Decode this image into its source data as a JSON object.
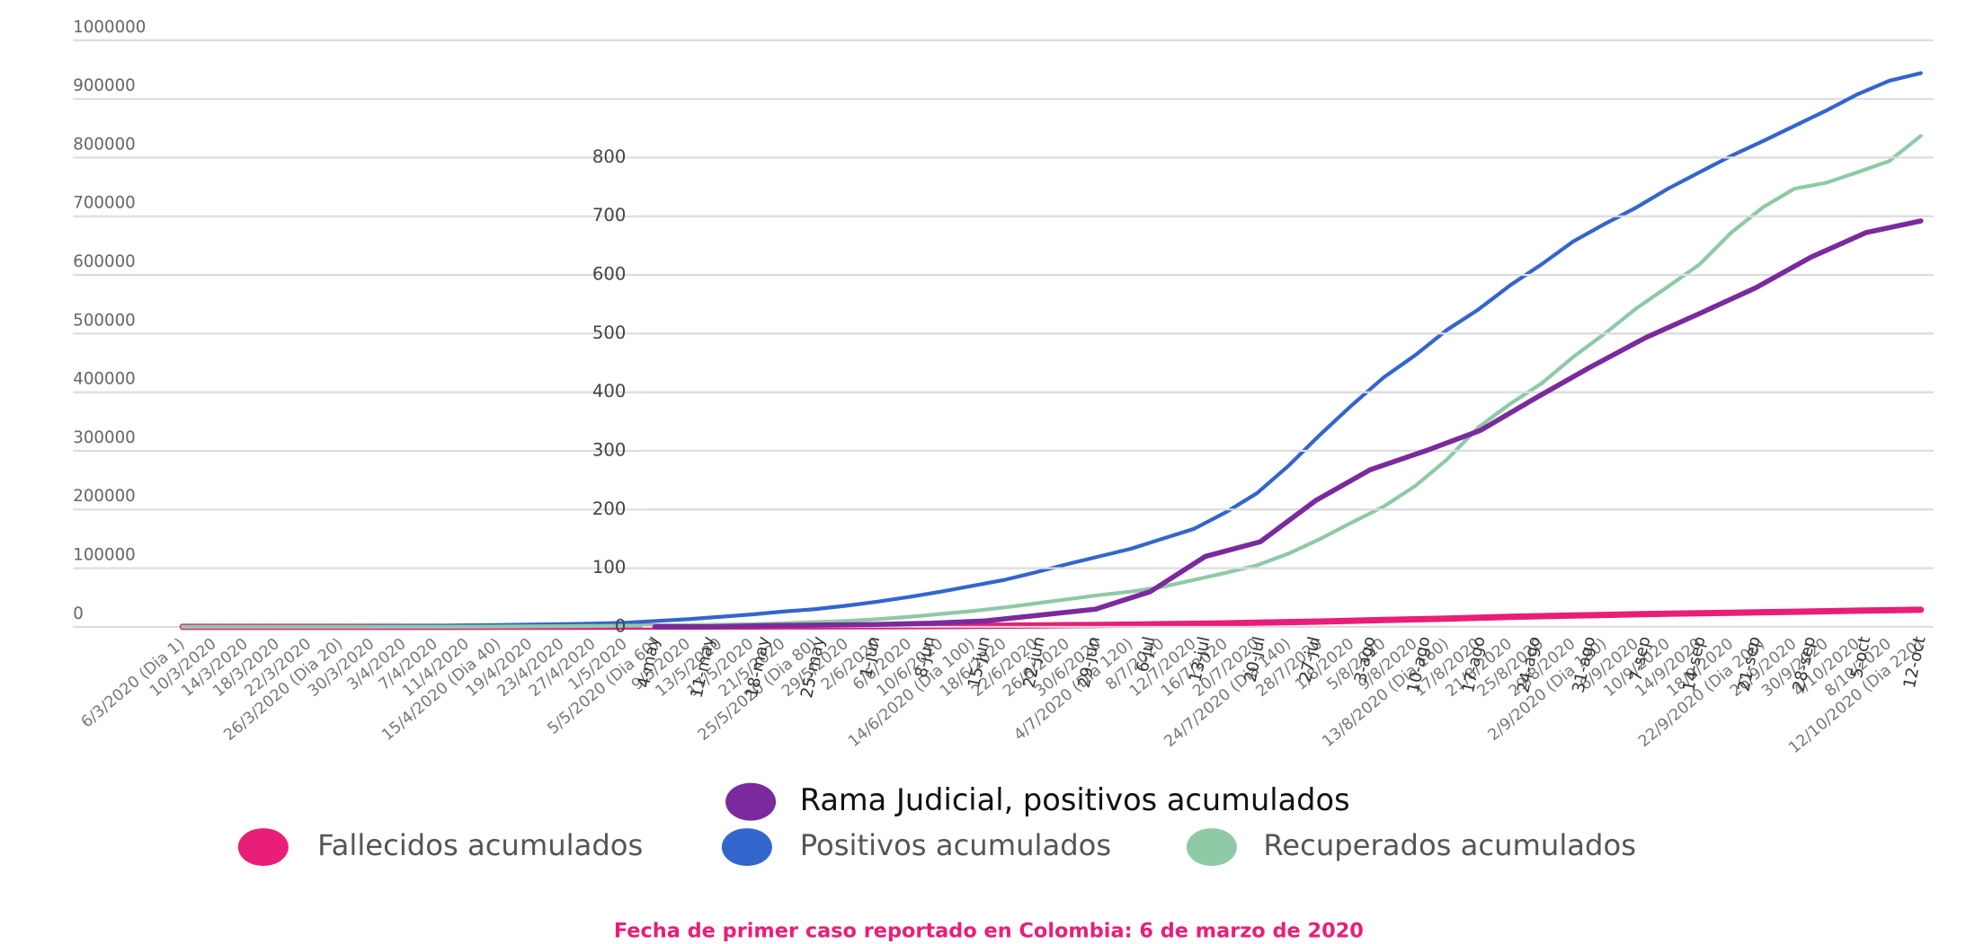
{
  "chart_data": [
    {
      "type": "line",
      "categories": [
        "6/3/2020 (Dia 1)",
        "10/3/2020",
        "14/3/2020",
        "18/3/2020",
        "22/3/2020",
        "26/3/2020 (Dia 20)",
        "30/3/2020",
        "3/4/2020",
        "7/4/2020",
        "11/4/2020",
        "15/4/2020 (Dia 40)",
        "19/4/2020",
        "23/4/2020",
        "27/4/2020",
        "1/5/2020",
        "5/5/2020 (Dia 60)",
        "9/5/2020",
        "13/5/2020",
        "17/5/2020",
        "21/5/2020",
        "25/5/2020 (Dia 80)",
        "29/5/2020",
        "2/6/2020",
        "6/6/2020",
        "10/6/2020",
        "14/6/2020 (Dia 100)",
        "18/6/2020",
        "22/6/2020",
        "26/6/2020",
        "30/6/2020",
        "4/7/2020 (Dia 120)",
        "8/7/2020",
        "12/7/2020",
        "16/7/2020",
        "20/7/2020",
        "24/7/2020 (Dia 140)",
        "28/7/2020",
        "1/8/2020",
        "5/8/2020",
        "9/8/2020",
        "13/8/2020 (Dia 160)",
        "17/8/2020",
        "21/8/2020",
        "25/8/2020",
        "29/8/2020",
        "2/9/2020 (Dia 180)",
        "6/9/2020",
        "10/9/2020",
        "14/9/2020",
        "18/9/2020",
        "22/9/2020 (Dia 200)",
        "26/9/2020",
        "30/9/2020",
        "4/10/2020",
        "8/10/2020",
        "12/10/2020 (Dia 220)"
      ],
      "series": [
        {
          "name": "Fallecidos acumulados",
          "color": "#e91e78",
          "values": [
            0,
            0,
            0,
            1,
            3,
            8,
            14,
            25,
            50,
            80,
            130,
            180,
            230,
            260,
            300,
            380,
            450,
            550,
            650,
            750,
            830,
            900,
            1000,
            1200,
            1400,
            1650,
            1950,
            2350,
            2800,
            3300,
            3800,
            4500,
            5200,
            6000,
            7000,
            8000,
            9000,
            10300,
            11600,
            12800,
            14000,
            15500,
            17000,
            18200,
            19300,
            20300,
            21400,
            22300,
            23200,
            24000,
            24800,
            25600,
            26600,
            27600,
            28300,
            29000
          ]
        },
        {
          "name": "Positivos acumulados",
          "color": "#3366cc",
          "values": [
            0,
            3,
            24,
            93,
            231,
            470,
            798,
            1267,
            1780,
            2473,
            3105,
            3792,
            4561,
            5597,
            7006,
            10000,
            13000,
            17000,
            21000,
            26000,
            30000,
            36000,
            43000,
            51000,
            60000,
            70000,
            80000,
            93000,
            107000,
            120000,
            133000,
            150000,
            167000,
            195000,
            228000,
            275000,
            328000,
            378000,
            425000,
            463000,
            506000,
            541000,
            582000,
            618000,
            657000,
            687000,
            715000,
            747000,
            775000,
            803000,
            828000,
            854000,
            880000,
            908000,
            931000,
            944000
          ]
        },
        {
          "name": "Recuperados acumulados",
          "color": "#8fc9a6",
          "values": [
            0,
            0,
            0,
            0,
            1,
            8,
            15,
            55,
            100,
            200,
            380,
            700,
            1000,
            1300,
            1700,
            2200,
            2800,
            3600,
            4500,
            6000,
            8000,
            10000,
            13000,
            17000,
            22000,
            27000,
            33000,
            40000,
            47000,
            54000,
            60000,
            68000,
            80000,
            92000,
            105000,
            125000,
            150000,
            178000,
            205000,
            240000,
            285000,
            340000,
            380000,
            415000,
            460000,
            500000,
            543000,
            580000,
            618000,
            672000,
            715000,
            747000,
            757000,
            775000,
            794000,
            837000
          ]
        }
      ],
      "ylim": [
        0,
        1000000
      ],
      "yticks": [
        0,
        100000,
        200000,
        300000,
        400000,
        500000,
        600000,
        700000,
        800000,
        900000,
        1000000
      ],
      "grid": true
    },
    {
      "type": "line",
      "categories": [
        "4-may",
        "11-may",
        "18-may",
        "25-may",
        "1-jun",
        "8-jun",
        "15-jun",
        "22-jun",
        "29-jun",
        "6-jul",
        "13-jul",
        "20-jul",
        "27-jul",
        "3-ago",
        "10-ago",
        "17-ago",
        "24-ago",
        "31-ago",
        "7-sep",
        "14-sep",
        "21-sep",
        "28-sep",
        "5-oct",
        "12-oct"
      ],
      "series": [
        {
          "name": "Rama Judicial, positivos acumulados",
          "color": "#7b2a9e",
          "values": [
            0,
            0,
            2,
            3,
            4,
            6,
            10,
            20,
            30,
            60,
            120,
            145,
            215,
            268,
            300,
            335,
            390,
            443,
            493,
            535,
            578,
            630,
            672,
            692
          ]
        }
      ],
      "ylim": [
        0,
        1000
      ],
      "yticks": [
        0,
        100,
        200,
        300,
        400,
        500,
        600,
        700,
        800
      ],
      "grid": true
    }
  ],
  "footnote": "Fecha de primer caso reportado en Colombia: 6 de marzo de 2020"
}
